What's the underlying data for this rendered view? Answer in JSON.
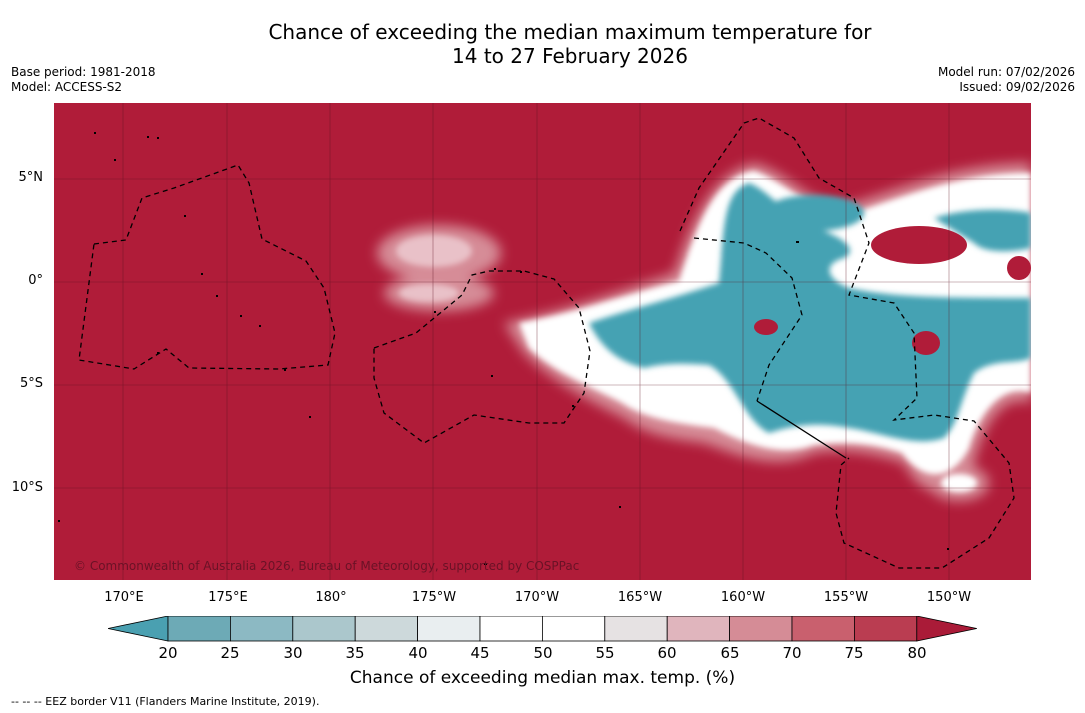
{
  "title_line1": "Chance of exceeding the median maximum temperature for",
  "title_line2": "14 to 27 February 2026",
  "meta_left": {
    "base_period": "Base period: 1981-2018",
    "model": "Model: ACCESS-S2"
  },
  "meta_right": {
    "model_run": "Model run: 07/02/2026",
    "issued": "Issued: 09/02/2026"
  },
  "map": {
    "lat_labels": [
      "5°N",
      "0°",
      "5°S",
      "10°S"
    ],
    "lon_labels": [
      "170°E",
      "175°E",
      "180°",
      "175°W",
      "170°W",
      "165°W",
      "160°W",
      "155°W",
      "150°W"
    ],
    "copyright": "© Commonwealth of Australia 2026, Bureau of Meteorology, supported by COSPPac",
    "colors": {
      "high": "#b01c39",
      "low": "#45a2b3",
      "neutral": "#ffffff"
    }
  },
  "colorbar": {
    "ticks": [
      "20",
      "25",
      "30",
      "35",
      "40",
      "45",
      "50",
      "55",
      "60",
      "65",
      "70",
      "75",
      "80"
    ],
    "colors": [
      "#4aa0b1",
      "#6daab6",
      "#8cb9c3",
      "#abc7cc",
      "#cdd9db",
      "#e9eef0",
      "#ffffff",
      "#ffffff",
      "#e6e2e3",
      "#e0b5bd",
      "#d58c96",
      "#c9606e",
      "#ba3d51",
      "#aa1b38"
    ],
    "title": "Chance of exceeding median max. temp. (%)"
  },
  "legend_note": "--  --  -- EEZ border V11 (Flanders Marine Institute, 2019)."
}
